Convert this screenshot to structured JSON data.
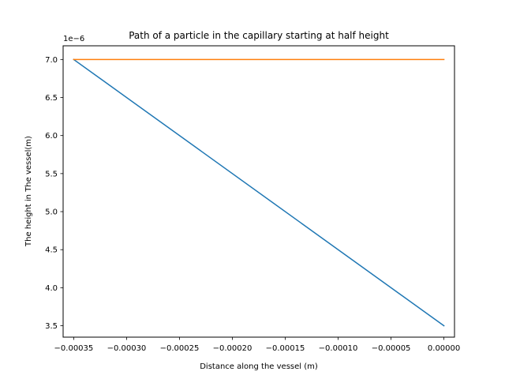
{
  "chart_data": {
    "type": "line",
    "title": "Path of a particle in the capillary starting at half height",
    "xlabel": "Distance along the vessel (m)",
    "ylabel": "The height in The vessel(m)",
    "y_offset_label": "1e−6",
    "xlim": [
      -0.00036,
      1e-05
    ],
    "ylim": [
      3.35,
      7.18
    ],
    "x_ticks": [
      -0.00035,
      -0.0003,
      -0.00025,
      -0.0002,
      -0.00015,
      -0.0001,
      -5e-05,
      0.0
    ],
    "x_tick_labels": [
      "−0.00035",
      "−0.00030",
      "−0.00025",
      "−0.00020",
      "−0.00015",
      "−0.00010",
      "−0.00005",
      "0.00000"
    ],
    "y_ticks": [
      3.5,
      4.0,
      4.5,
      5.0,
      5.5,
      6.0,
      6.5,
      7.0
    ],
    "y_tick_labels": [
      "3.5",
      "4.0",
      "4.5",
      "5.0",
      "5.5",
      "6.0",
      "6.5",
      "7.0"
    ],
    "grid": false,
    "series": [
      {
        "color": "#1f77b4",
        "x": [
          -0.00035,
          0.0
        ],
        "y": [
          7.0,
          3.5
        ]
      },
      {
        "color": "#ff7f0e",
        "x": [
          -0.00035,
          0.0
        ],
        "y": [
          7.0,
          7.0
        ]
      }
    ]
  }
}
